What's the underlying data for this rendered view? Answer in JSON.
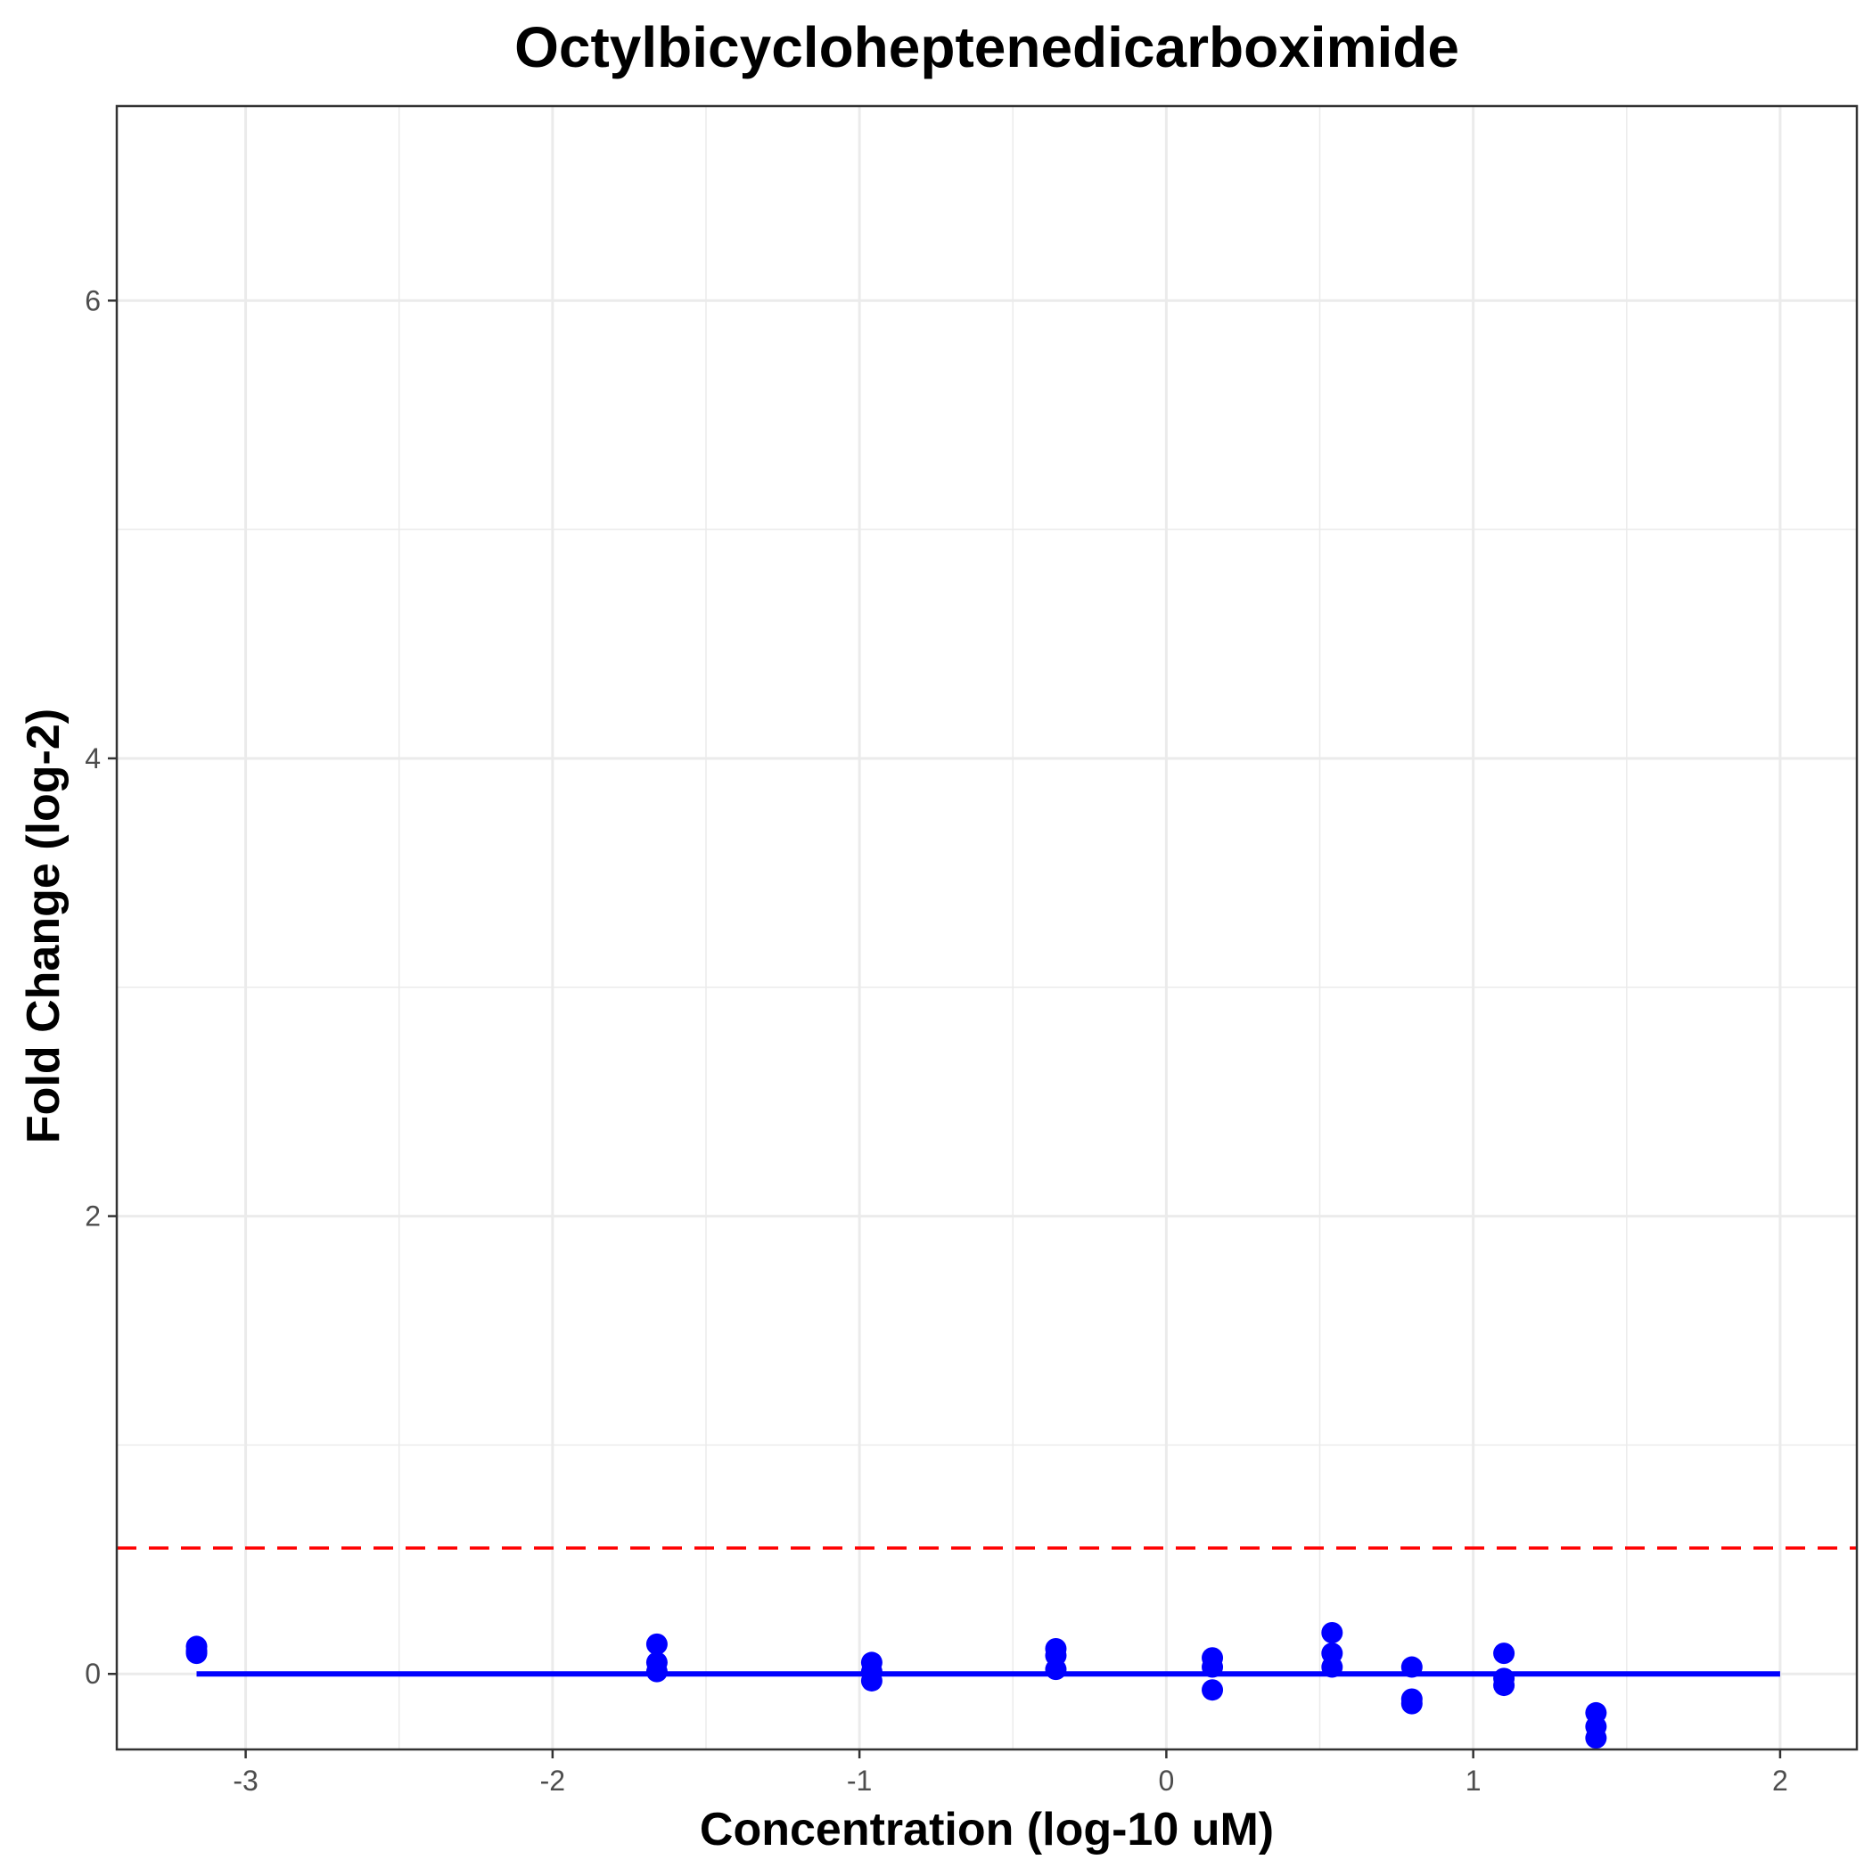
{
  "chart_data": {
    "type": "scatter",
    "title": "Octylbicycloheptenedicarboximide",
    "xlabel": "Concentration (log-10 uM)",
    "ylabel": "Fold Change (log-2)",
    "xlim": [
      -3.42,
      2.25
    ],
    "ylim": [
      -0.33,
      6.85
    ],
    "x_ticks": [
      -3,
      -2,
      -1,
      0,
      1,
      2
    ],
    "x_tick_labels": [
      "-3",
      "-2",
      "-1",
      "0",
      "1",
      "2"
    ],
    "y_ticks": [
      0,
      2,
      4,
      6
    ],
    "y_tick_labels": [
      "0",
      "2",
      "4",
      "6"
    ],
    "grid": true,
    "legend": "none",
    "colors": {
      "points": "#0000ff",
      "fit_line": "#0000ff",
      "threshold_line": "#ff0000",
      "grid": "#ebebeb",
      "panel_border": "#333333"
    },
    "series": [
      {
        "kind": "points",
        "points": [
          {
            "x": -3.16,
            "y": 0.12
          },
          {
            "x": -3.16,
            "y": 0.1
          },
          {
            "x": -3.16,
            "y": 0.09
          },
          {
            "x": -1.66,
            "y": 0.13
          },
          {
            "x": -1.66,
            "y": 0.05
          },
          {
            "x": -1.66,
            "y": 0.01
          },
          {
            "x": -0.96,
            "y": 0.05
          },
          {
            "x": -0.96,
            "y": 0.01
          },
          {
            "x": -0.96,
            "y": -0.03
          },
          {
            "x": -0.36,
            "y": 0.11
          },
          {
            "x": -0.36,
            "y": 0.08
          },
          {
            "x": -0.36,
            "y": 0.02
          },
          {
            "x": 0.15,
            "y": 0.07
          },
          {
            "x": 0.15,
            "y": 0.03
          },
          {
            "x": 0.15,
            "y": -0.07
          },
          {
            "x": 0.54,
            "y": 0.18
          },
          {
            "x": 0.54,
            "y": 0.09
          },
          {
            "x": 0.54,
            "y": 0.03
          },
          {
            "x": 0.8,
            "y": 0.03
          },
          {
            "x": 0.8,
            "y": -0.11
          },
          {
            "x": 0.8,
            "y": -0.13
          },
          {
            "x": 1.1,
            "y": 0.09
          },
          {
            "x": 1.1,
            "y": -0.02
          },
          {
            "x": 1.1,
            "y": -0.05
          },
          {
            "x": 1.4,
            "y": -0.17
          },
          {
            "x": 1.4,
            "y": -0.23
          },
          {
            "x": 1.4,
            "y": -0.28
          }
        ]
      },
      {
        "kind": "fit_line",
        "x": [
          -3.16,
          2.0
        ],
        "y": [
          0,
          0
        ]
      },
      {
        "kind": "threshold_line",
        "style": "dashed",
        "y": 0.55
      }
    ]
  }
}
